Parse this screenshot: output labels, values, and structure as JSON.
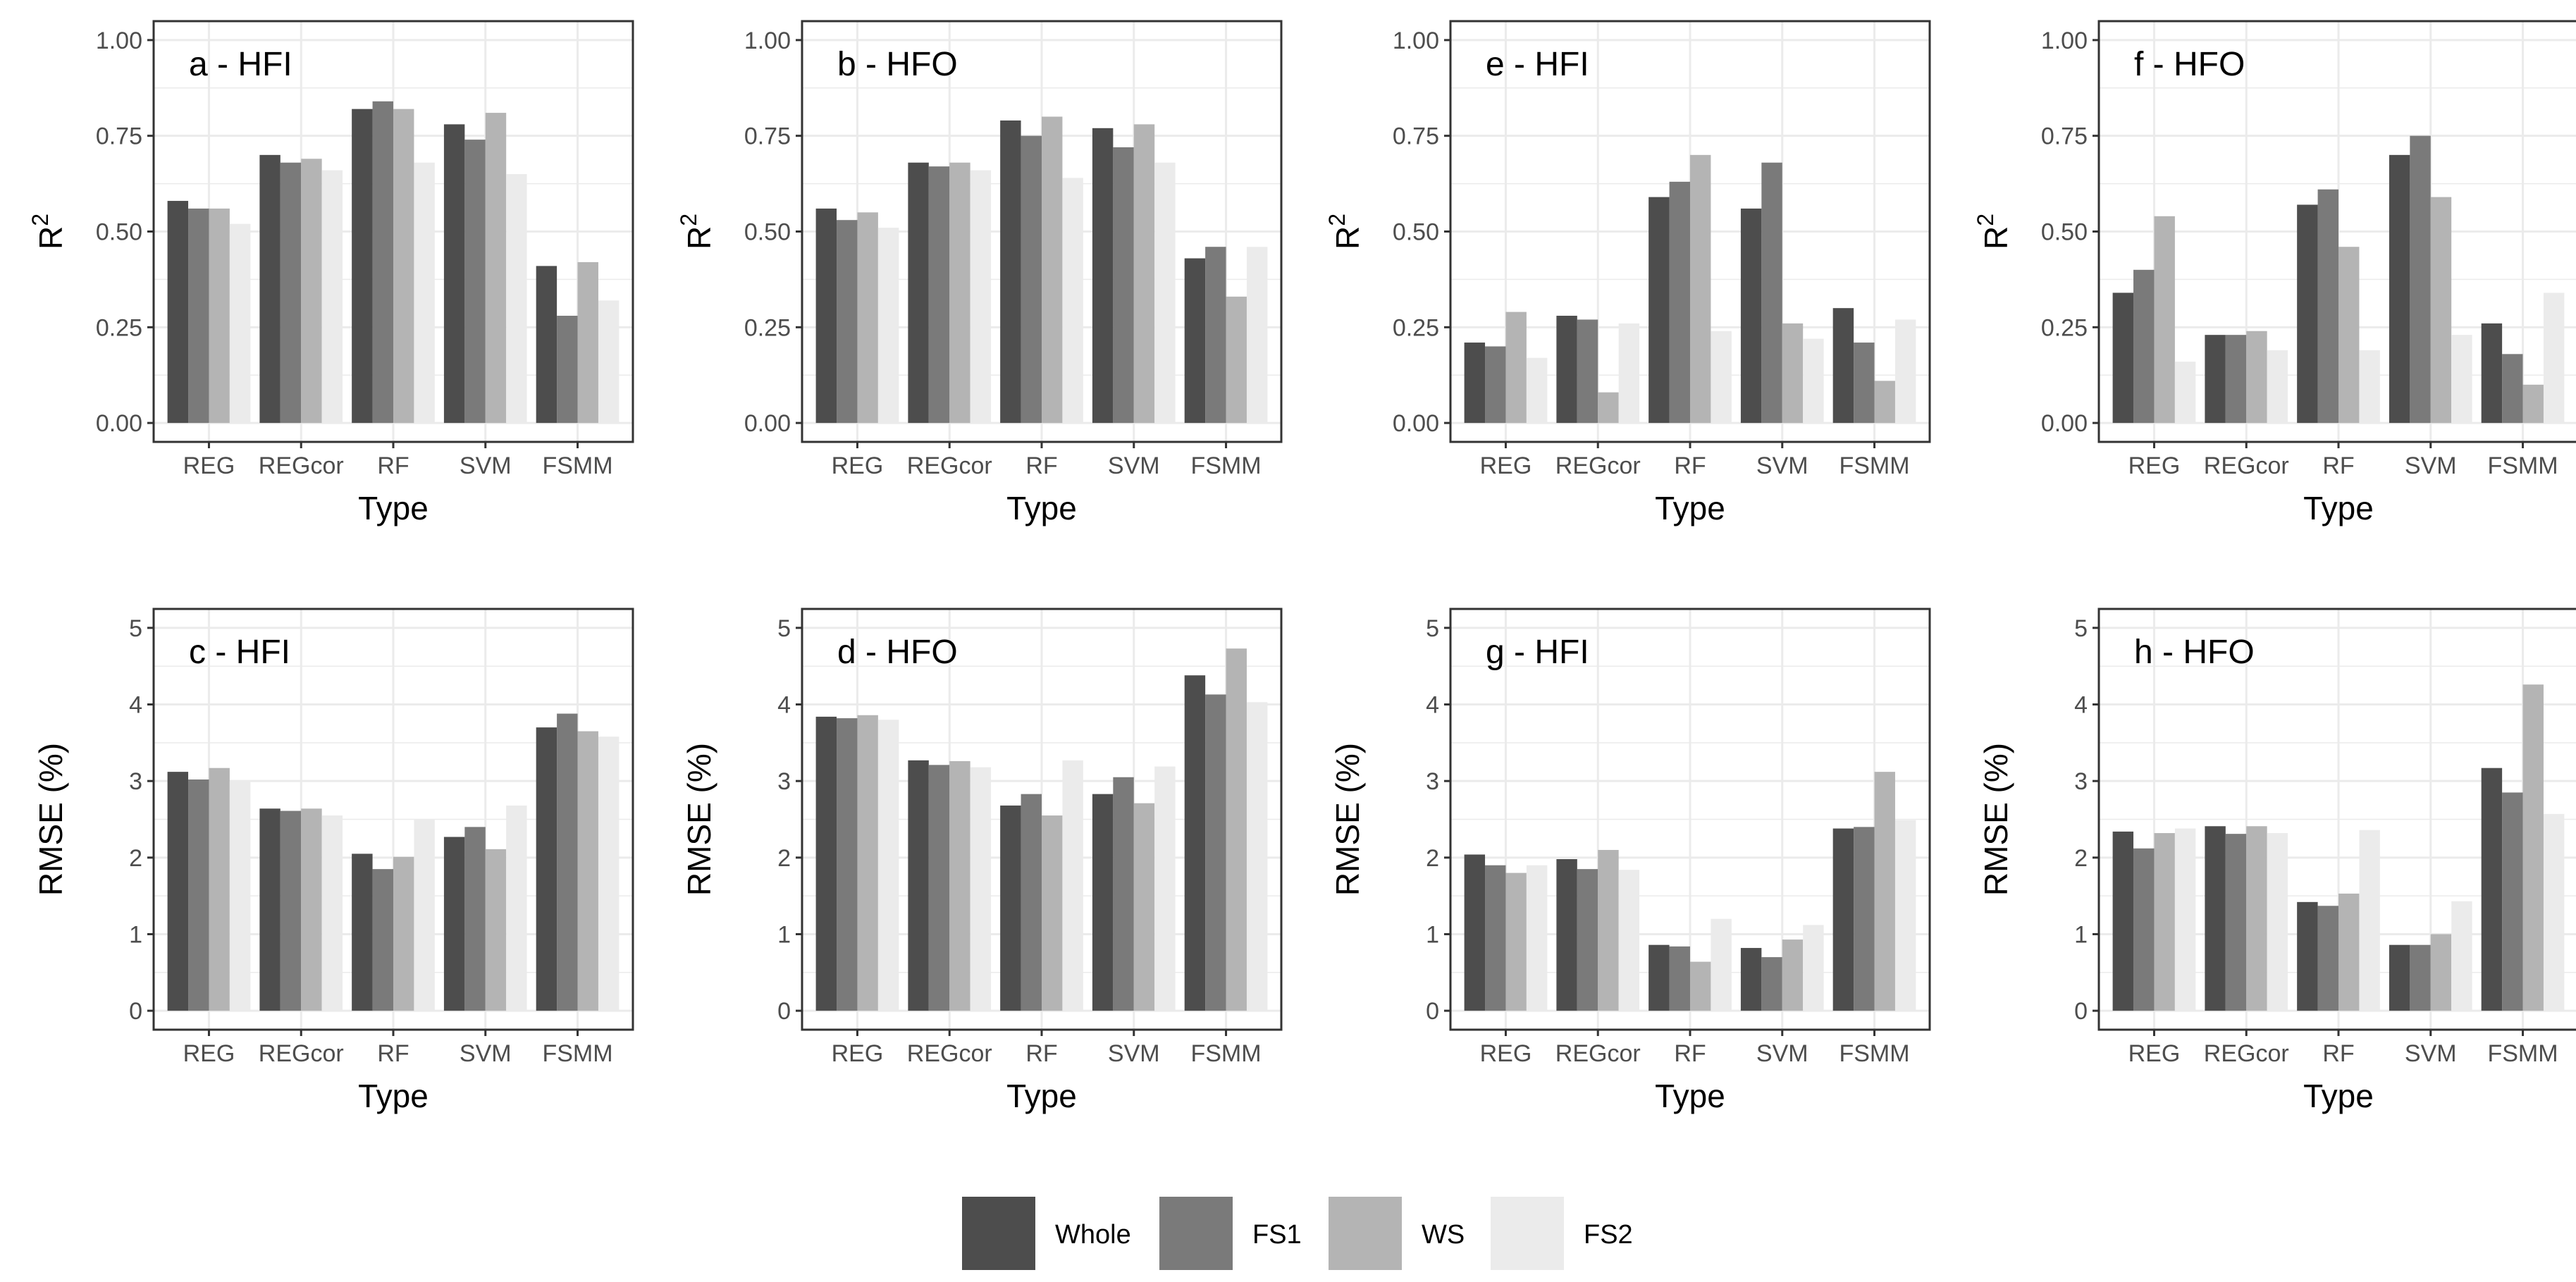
{
  "chart_data": [
    {
      "type": "bar",
      "title": "a - HFI",
      "xlabel": "Type",
      "ylabel": "R",
      "ylabel_superscript": "2",
      "ylim": [
        0,
        1
      ],
      "yticks": [
        "0.00",
        "0.25",
        "0.50",
        "0.75",
        "1.00"
      ],
      "categories": [
        "REG",
        "REGcor",
        "RF",
        "SVM",
        "FSMM"
      ],
      "series": [
        {
          "name": "Whole",
          "values": [
            0.58,
            0.7,
            0.82,
            0.78,
            0.41
          ]
        },
        {
          "name": "FS1",
          "values": [
            0.56,
            0.68,
            0.84,
            0.74,
            0.28
          ]
        },
        {
          "name": "WS",
          "values": [
            0.56,
            0.69,
            0.82,
            0.81,
            0.42
          ]
        },
        {
          "name": "FS2",
          "values": [
            0.52,
            0.66,
            0.68,
            0.65,
            0.32
          ]
        }
      ]
    },
    {
      "type": "bar",
      "title": "b - HFO",
      "xlabel": "Type",
      "ylabel": "R",
      "ylabel_superscript": "2",
      "ylim": [
        0,
        1
      ],
      "yticks": [
        "0.00",
        "0.25",
        "0.50",
        "0.75",
        "1.00"
      ],
      "categories": [
        "REG",
        "REGcor",
        "RF",
        "SVM",
        "FSMM"
      ],
      "series": [
        {
          "name": "Whole",
          "values": [
            0.56,
            0.68,
            0.79,
            0.77,
            0.43
          ]
        },
        {
          "name": "FS1",
          "values": [
            0.53,
            0.67,
            0.75,
            0.72,
            0.46
          ]
        },
        {
          "name": "WS",
          "values": [
            0.55,
            0.68,
            0.8,
            0.78,
            0.33
          ]
        },
        {
          "name": "FS2",
          "values": [
            0.51,
            0.66,
            0.64,
            0.68,
            0.46
          ]
        }
      ]
    },
    {
      "type": "bar",
      "title": "e - HFI",
      "xlabel": "Type",
      "ylabel": "R",
      "ylabel_superscript": "2",
      "ylim": [
        0,
        1
      ],
      "yticks": [
        "0.00",
        "0.25",
        "0.50",
        "0.75",
        "1.00"
      ],
      "categories": [
        "REG",
        "REGcor",
        "RF",
        "SVM",
        "FSMM"
      ],
      "series": [
        {
          "name": "Whole",
          "values": [
            0.21,
            0.28,
            0.59,
            0.56,
            0.3
          ]
        },
        {
          "name": "FS1",
          "values": [
            0.2,
            0.27,
            0.63,
            0.68,
            0.21
          ]
        },
        {
          "name": "WS",
          "values": [
            0.29,
            0.08,
            0.7,
            0.26,
            0.11
          ]
        },
        {
          "name": "FS2",
          "values": [
            0.17,
            0.26,
            0.24,
            0.22,
            0.27
          ]
        }
      ]
    },
    {
      "type": "bar",
      "title": "f - HFO",
      "xlabel": "Type",
      "ylabel": "R",
      "ylabel_superscript": "2",
      "ylim": [
        0,
        1
      ],
      "yticks": [
        "0.00",
        "0.25",
        "0.50",
        "0.75",
        "1.00"
      ],
      "categories": [
        "REG",
        "REGcor",
        "RF",
        "SVM",
        "FSMM"
      ],
      "series": [
        {
          "name": "Whole",
          "values": [
            0.34,
            0.23,
            0.57,
            0.7,
            0.26
          ]
        },
        {
          "name": "FS1",
          "values": [
            0.4,
            0.23,
            0.61,
            0.75,
            0.18
          ]
        },
        {
          "name": "WS",
          "values": [
            0.54,
            0.24,
            0.46,
            0.59,
            0.1
          ]
        },
        {
          "name": "FS2",
          "values": [
            0.16,
            0.19,
            0.19,
            0.23,
            0.34
          ]
        }
      ]
    },
    {
      "type": "bar",
      "title": "c - HFI",
      "xlabel": "Type",
      "ylabel": "RMSE (%)",
      "ylim": [
        0,
        5
      ],
      "yticks": [
        "0",
        "1",
        "2",
        "3",
        "4",
        "5"
      ],
      "categories": [
        "REG",
        "REGcor",
        "RF",
        "SVM",
        "FSMM"
      ],
      "series": [
        {
          "name": "Whole",
          "values": [
            3.12,
            2.64,
            2.05,
            2.27,
            3.7
          ]
        },
        {
          "name": "FS1",
          "values": [
            3.02,
            2.61,
            1.85,
            2.4,
            3.88
          ]
        },
        {
          "name": "WS",
          "values": [
            3.17,
            2.64,
            2.01,
            2.11,
            3.65
          ]
        },
        {
          "name": "FS2",
          "values": [
            3.0,
            2.55,
            2.5,
            2.68,
            3.58
          ]
        }
      ]
    },
    {
      "type": "bar",
      "title": "d - HFO",
      "xlabel": "Type",
      "ylabel": "RMSE (%)",
      "ylim": [
        0,
        5
      ],
      "yticks": [
        "0",
        "1",
        "2",
        "3",
        "4",
        "5"
      ],
      "categories": [
        "REG",
        "REGcor",
        "RF",
        "SVM",
        "FSMM"
      ],
      "series": [
        {
          "name": "Whole",
          "values": [
            3.84,
            3.27,
            2.68,
            2.83,
            4.38
          ]
        },
        {
          "name": "FS1",
          "values": [
            3.82,
            3.21,
            2.83,
            3.05,
            4.13
          ]
        },
        {
          "name": "WS",
          "values": [
            3.86,
            3.26,
            2.55,
            2.71,
            4.73
          ]
        },
        {
          "name": "FS2",
          "values": [
            3.8,
            3.18,
            3.27,
            3.19,
            4.03
          ]
        }
      ]
    },
    {
      "type": "bar",
      "title": "g - HFI",
      "xlabel": "Type",
      "ylabel": "RMSE (%)",
      "ylim": [
        0,
        5
      ],
      "yticks": [
        "0",
        "1",
        "2",
        "3",
        "4",
        "5"
      ],
      "categories": [
        "REG",
        "REGcor",
        "RF",
        "SVM",
        "FSMM"
      ],
      "series": [
        {
          "name": "Whole",
          "values": [
            2.04,
            1.98,
            0.86,
            0.82,
            2.38
          ]
        },
        {
          "name": "FS1",
          "values": [
            1.9,
            1.85,
            0.84,
            0.7,
            2.4
          ]
        },
        {
          "name": "WS",
          "values": [
            1.8,
            2.1,
            0.64,
            0.93,
            3.12
          ]
        },
        {
          "name": "FS2",
          "values": [
            1.9,
            1.84,
            1.2,
            1.12,
            2.49
          ]
        }
      ]
    },
    {
      "type": "bar",
      "title": "h - HFO",
      "xlabel": "Type",
      "ylabel": "RMSE (%)",
      "ylim": [
        0,
        5
      ],
      "yticks": [
        "0",
        "1",
        "2",
        "3",
        "4",
        "5"
      ],
      "categories": [
        "REG",
        "REGcor",
        "RF",
        "SVM",
        "FSMM"
      ],
      "series": [
        {
          "name": "Whole",
          "values": [
            2.34,
            2.41,
            1.42,
            0.86,
            3.17
          ]
        },
        {
          "name": "FS1",
          "values": [
            2.12,
            2.31,
            1.37,
            0.86,
            2.85
          ]
        },
        {
          "name": "WS",
          "values": [
            2.32,
            2.41,
            1.53,
            1.0,
            4.26
          ]
        },
        {
          "name": "FS2",
          "values": [
            2.38,
            2.32,
            2.36,
            1.43,
            2.57
          ]
        }
      ]
    }
  ],
  "legend": {
    "position": "bottom",
    "items": [
      {
        "name": "Whole",
        "color": "#4d4d4d"
      },
      {
        "name": "FS1",
        "color": "#7a7a7a"
      },
      {
        "name": "WS",
        "color": "#b4b4b4"
      },
      {
        "name": "FS2",
        "color": "#ebebeb"
      }
    ]
  },
  "colors": {
    "panel_border": "#333333",
    "grid": "#ebebeb",
    "tick_text": "#4d4d4d"
  }
}
